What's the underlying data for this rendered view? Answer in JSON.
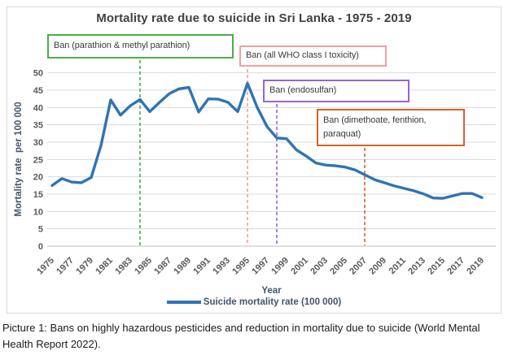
{
  "page": {
    "caption": "Picture 1: Bans on highly hazardous pesticides and reduction in mortality due to suicide (World Mental Health Report 2022)."
  },
  "chart_data": {
    "type": "line",
    "title": "Mortality rate due to suicide in Sri Lanka - 1975 - 2019",
    "xlabel": "Year",
    "ylabel": "Mortality rate  per 100 000",
    "legend": "Suicide mortality rate (100 000)",
    "legend_position": "bottom",
    "grid": true,
    "ylim": [
      0,
      50
    ],
    "ytick_step": 5,
    "xtick_years": [
      1975,
      1977,
      1979,
      1981,
      1983,
      1985,
      1987,
      1989,
      1991,
      1993,
      1995,
      1997,
      1999,
      2001,
      2003,
      2005,
      2007,
      2009,
      2011,
      2013,
      2015,
      2017,
      2019
    ],
    "x": [
      1975,
      1976,
      1977,
      1978,
      1979,
      1980,
      1981,
      1982,
      1983,
      1984,
      1985,
      1986,
      1987,
      1988,
      1989,
      1990,
      1991,
      1992,
      1993,
      1994,
      1995,
      1996,
      1997,
      1998,
      1999,
      2000,
      2001,
      2002,
      2003,
      2004,
      2005,
      2006,
      2007,
      2008,
      2009,
      2010,
      2011,
      2012,
      2013,
      2014,
      2015,
      2016,
      2017,
      2018,
      2019
    ],
    "values": [
      17.5,
      19.5,
      18.5,
      18.3,
      19.8,
      29,
      42.2,
      37.8,
      40.5,
      42.3,
      38.8,
      41.5,
      44,
      45.4,
      45.8,
      38.7,
      42.5,
      42.4,
      41.5,
      38.8,
      47,
      40,
      34.5,
      31.2,
      31,
      27.8,
      26,
      24,
      23.4,
      23.2,
      22.8,
      22,
      20.6,
      19.2,
      18.3,
      17.4,
      16.7,
      16,
      15.1,
      13.9,
      13.8,
      14.5,
      15.2,
      15.2,
      14
    ],
    "line_color": "#2E74B5",
    "annotations": [
      {
        "label": "Ban (parathion & methyl parathion)",
        "year": 1984,
        "color": "#4AAD4A"
      },
      {
        "label": "Ban (all WHO class I toxicity)",
        "year": 1995,
        "color": "#F2A09D"
      },
      {
        "label": "Ban (endosulfan)",
        "year": 1998,
        "color": "#9468C8"
      },
      {
        "label": "Ban (dimethoate, fenthion, paraquat)",
        "year": 2007,
        "color": "#D4622A"
      }
    ]
  }
}
